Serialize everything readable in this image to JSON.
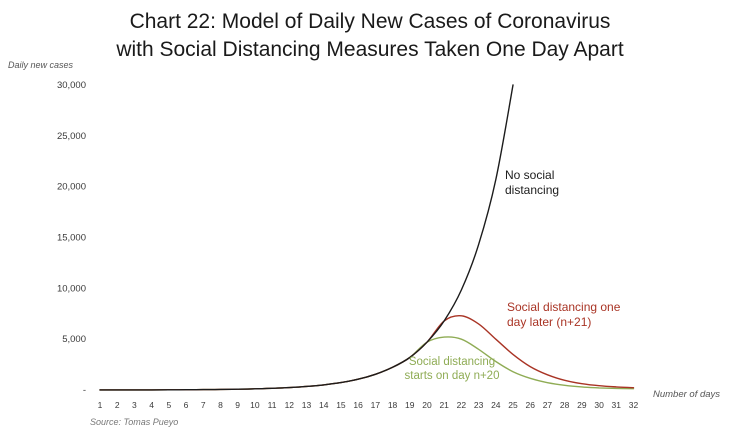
{
  "title": {
    "line1": "Chart 22: Model of Daily New Cases of Coronavirus",
    "line2": "with Social Distancing Measures Taken One Day Apart"
  },
  "axes": {
    "y_label": "Daily new cases",
    "x_label": "Number of days",
    "y_ticks": [
      "30,000",
      "25,000",
      "20,000",
      "15,000",
      "10,000",
      "5,000",
      "-"
    ],
    "y_tick_values": [
      30000,
      25000,
      20000,
      15000,
      10000,
      5000,
      0
    ],
    "x_ticks": [
      "1",
      "2",
      "3",
      "4",
      "5",
      "6",
      "7",
      "8",
      "9",
      "10",
      "11",
      "12",
      "13",
      "14",
      "15",
      "16",
      "17",
      "18",
      "19",
      "20",
      "21",
      "22",
      "23",
      "24",
      "25",
      "26",
      "27",
      "28",
      "29",
      "30",
      "31",
      "32"
    ]
  },
  "source": "Source: Tomas Pueyo",
  "colors": {
    "no_distancing": "#1c1c1c",
    "one_day_later": "#a93425",
    "starts_day_20": "#8fac55"
  },
  "annotations": {
    "none": {
      "line1": "No social",
      "line2": "distancing"
    },
    "red": {
      "line1": "Social distancing one",
      "line2": "day later (n+21)"
    },
    "green": {
      "line1": "Social distancing",
      "line2": "starts on day n+20"
    }
  },
  "chart_data": {
    "type": "line",
    "title": "Chart 22: Model of Daily New Cases of Coronavirus with Social Distancing Measures Taken One Day Apart",
    "xlabel": "Number of days",
    "ylabel": "Daily new cases",
    "xlim": [
      1,
      32
    ],
    "ylim": [
      0,
      30000
    ],
    "grid": false,
    "legend": "inline-annotations",
    "x": [
      1,
      2,
      3,
      4,
      5,
      6,
      7,
      8,
      9,
      10,
      11,
      12,
      13,
      14,
      15,
      16,
      17,
      18,
      19,
      20,
      21,
      22,
      23,
      24,
      25,
      26,
      27,
      28,
      29,
      30,
      31,
      32
    ],
    "series": [
      {
        "name": "No social distancing",
        "color": "#1c1c1c",
        "values": [
          4,
          6,
          9,
          12,
          18,
          26,
          38,
          55,
          79,
          115,
          165,
          240,
          350,
          505,
          730,
          1060,
          1540,
          2230,
          3200,
          4700,
          6800,
          9850,
          14300,
          20700,
          30000,
          null,
          null,
          null,
          null,
          null,
          null,
          null
        ]
      },
      {
        "name": "Social distancing one day later (n+21)",
        "color": "#a93425",
        "values": [
          4,
          6,
          9,
          12,
          18,
          26,
          38,
          55,
          79,
          115,
          165,
          240,
          350,
          505,
          730,
          1060,
          1540,
          2230,
          3200,
          4700,
          6800,
          7300,
          6500,
          5000,
          3500,
          2300,
          1500,
          950,
          620,
          420,
          300,
          230
        ]
      },
      {
        "name": "Social distancing starts on day n+20",
        "color": "#8fac55",
        "values": [
          4,
          6,
          9,
          12,
          18,
          26,
          38,
          55,
          79,
          115,
          165,
          240,
          350,
          505,
          730,
          1060,
          1540,
          2230,
          3200,
          4700,
          5200,
          5000,
          4000,
          2800,
          1800,
          1150,
          720,
          460,
          300,
          210,
          160,
          130
        ]
      }
    ]
  }
}
